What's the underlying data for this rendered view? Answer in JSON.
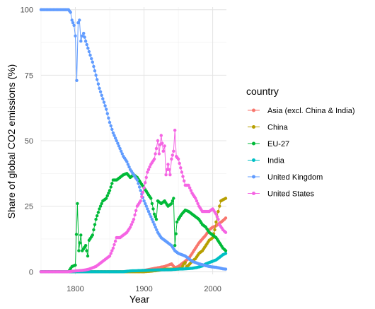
{
  "chart_data": {
    "type": "line",
    "xlabel": "Year",
    "ylabel": "Share of global CO2 emissions (%)",
    "xlim": [
      1750,
      2020
    ],
    "ylim": [
      -1,
      101
    ],
    "x_ticks": [
      1800,
      1900,
      2000
    ],
    "y_ticks": [
      0,
      25,
      50,
      75,
      100
    ],
    "grid": true,
    "markers": true,
    "legend": {
      "title": "country",
      "position": "right"
    },
    "series": [
      {
        "name": "Asia (excl. China & India)",
        "color": "#F8766D",
        "points": [
          [
            1750,
            0
          ],
          [
            1870,
            0
          ],
          [
            1880,
            0.2
          ],
          [
            1890,
            0.3
          ],
          [
            1900,
            0.5
          ],
          [
            1910,
            1
          ],
          [
            1920,
            1.5
          ],
          [
            1930,
            2
          ],
          [
            1940,
            3
          ],
          [
            1945,
            1.5
          ],
          [
            1950,
            2
          ],
          [
            1955,
            3
          ],
          [
            1960,
            4
          ],
          [
            1965,
            5
          ],
          [
            1970,
            7
          ],
          [
            1975,
            9
          ],
          [
            1980,
            11
          ],
          [
            1985,
            12.5
          ],
          [
            1990,
            14
          ],
          [
            1995,
            16
          ],
          [
            2000,
            17
          ],
          [
            2005,
            17.5
          ],
          [
            2010,
            18.5
          ],
          [
            2015,
            19.5
          ],
          [
            2019,
            20.5
          ]
        ]
      },
      {
        "name": "China",
        "color": "#B79F00",
        "points": [
          [
            1750,
            0
          ],
          [
            1900,
            0
          ],
          [
            1910,
            0.2
          ],
          [
            1920,
            0.5
          ],
          [
            1930,
            1
          ],
          [
            1940,
            1
          ],
          [
            1950,
            1
          ],
          [
            1955,
            1.5
          ],
          [
            1958,
            3
          ],
          [
            1960,
            3.5
          ],
          [
            1962,
            2
          ],
          [
            1965,
            2.5
          ],
          [
            1970,
            4
          ],
          [
            1975,
            5
          ],
          [
            1980,
            7
          ],
          [
            1985,
            8
          ],
          [
            1990,
            10
          ],
          [
            1995,
            12
          ],
          [
            2000,
            13
          ],
          [
            2003,
            16
          ],
          [
            2005,
            19
          ],
          [
            2008,
            23
          ],
          [
            2010,
            25
          ],
          [
            2012,
            27
          ],
          [
            2015,
            27.5
          ],
          [
            2019,
            28
          ]
        ]
      },
      {
        "name": "EU-27",
        "color": "#00BA38",
        "points": [
          [
            1750,
            0
          ],
          [
            1790,
            0
          ],
          [
            1795,
            2
          ],
          [
            1800,
            2.5
          ],
          [
            1803,
            26
          ],
          [
            1805,
            8
          ],
          [
            1808,
            14
          ],
          [
            1810,
            8
          ],
          [
            1815,
            10
          ],
          [
            1818,
            6
          ],
          [
            1820,
            12
          ],
          [
            1825,
            14
          ],
          [
            1830,
            20
          ],
          [
            1835,
            24
          ],
          [
            1840,
            27
          ],
          [
            1845,
            28
          ],
          [
            1850,
            31
          ],
          [
            1855,
            35
          ],
          [
            1860,
            35
          ],
          [
            1865,
            36
          ],
          [
            1870,
            37
          ],
          [
            1875,
            37.5
          ],
          [
            1880,
            36
          ],
          [
            1885,
            37
          ],
          [
            1890,
            36
          ],
          [
            1895,
            34
          ],
          [
            1900,
            32
          ],
          [
            1905,
            30
          ],
          [
            1910,
            28
          ],
          [
            1915,
            22
          ],
          [
            1918,
            20
          ],
          [
            1920,
            27
          ],
          [
            1925,
            26
          ],
          [
            1930,
            27
          ],
          [
            1935,
            25
          ],
          [
            1940,
            26
          ],
          [
            1943,
            28
          ],
          [
            1945,
            10
          ],
          [
            1948,
            19
          ],
          [
            1950,
            20
          ],
          [
            1955,
            22
          ],
          [
            1960,
            23.5
          ],
          [
            1965,
            23
          ],
          [
            1970,
            22
          ],
          [
            1975,
            21
          ],
          [
            1980,
            20
          ],
          [
            1985,
            18
          ],
          [
            1990,
            17
          ],
          [
            1995,
            15
          ],
          [
            2000,
            14
          ],
          [
            2005,
            13
          ],
          [
            2010,
            11
          ],
          [
            2015,
            9
          ],
          [
            2019,
            8
          ]
        ]
      },
      {
        "name": "India",
        "color": "#00BFC4",
        "points": [
          [
            1750,
            0
          ],
          [
            1870,
            0
          ],
          [
            1880,
            0.3
          ],
          [
            1900,
            0.5
          ],
          [
            1920,
            0.7
          ],
          [
            1940,
            0.8
          ],
          [
            1950,
            1
          ],
          [
            1960,
            1.1
          ],
          [
            1970,
            1.3
          ],
          [
            1980,
            1.8
          ],
          [
            1985,
            2.2
          ],
          [
            1990,
            3
          ],
          [
            1995,
            3.5
          ],
          [
            2000,
            4
          ],
          [
            2005,
            4.5
          ],
          [
            2010,
            5.5
          ],
          [
            2015,
            6.5
          ],
          [
            2019,
            7
          ]
        ]
      },
      {
        "name": "United Kingdom",
        "color": "#619CFF",
        "points": [
          [
            1750,
            100
          ],
          [
            1790,
            100
          ],
          [
            1793,
            99
          ],
          [
            1795,
            96
          ],
          [
            1798,
            94
          ],
          [
            1800,
            90
          ],
          [
            1802,
            73
          ],
          [
            1804,
            95
          ],
          [
            1806,
            96
          ],
          [
            1808,
            88
          ],
          [
            1810,
            90
          ],
          [
            1812,
            91
          ],
          [
            1815,
            88
          ],
          [
            1820,
            84
          ],
          [
            1825,
            80
          ],
          [
            1830,
            75
          ],
          [
            1835,
            70
          ],
          [
            1840,
            66
          ],
          [
            1845,
            62
          ],
          [
            1850,
            57
          ],
          [
            1855,
            53
          ],
          [
            1860,
            50
          ],
          [
            1865,
            47
          ],
          [
            1870,
            44
          ],
          [
            1875,
            42
          ],
          [
            1880,
            39
          ],
          [
            1885,
            37
          ],
          [
            1890,
            35
          ],
          [
            1895,
            31
          ],
          [
            1900,
            27
          ],
          [
            1905,
            24
          ],
          [
            1910,
            21
          ],
          [
            1915,
            18
          ],
          [
            1920,
            15
          ],
          [
            1925,
            13
          ],
          [
            1930,
            12
          ],
          [
            1935,
            11
          ],
          [
            1940,
            10
          ],
          [
            1945,
            8
          ],
          [
            1950,
            7
          ],
          [
            1955,
            6.5
          ],
          [
            1960,
            6
          ],
          [
            1965,
            5
          ],
          [
            1970,
            4
          ],
          [
            1975,
            3.5
          ],
          [
            1980,
            3
          ],
          [
            1985,
            2.7
          ],
          [
            1990,
            2.3
          ],
          [
            1995,
            2
          ],
          [
            2000,
            1.8
          ],
          [
            2005,
            1.7
          ],
          [
            2010,
            1.4
          ],
          [
            2015,
            1.1
          ],
          [
            2019,
            1
          ]
        ]
      },
      {
        "name": "United States",
        "color": "#F564E3",
        "points": [
          [
            1750,
            0
          ],
          [
            1790,
            0
          ],
          [
            1800,
            0.3
          ],
          [
            1810,
            0.5
          ],
          [
            1815,
            0.7
          ],
          [
            1820,
            1
          ],
          [
            1825,
            1.5
          ],
          [
            1830,
            2
          ],
          [
            1835,
            3
          ],
          [
            1840,
            4
          ],
          [
            1845,
            5
          ],
          [
            1850,
            6
          ],
          [
            1855,
            9
          ],
          [
            1860,
            13
          ],
          [
            1865,
            13
          ],
          [
            1870,
            14
          ],
          [
            1875,
            15
          ],
          [
            1880,
            17
          ],
          [
            1885,
            20
          ],
          [
            1890,
            25
          ],
          [
            1895,
            27
          ],
          [
            1900,
            32
          ],
          [
            1905,
            38
          ],
          [
            1910,
            41
          ],
          [
            1915,
            43
          ],
          [
            1918,
            47
          ],
          [
            1920,
            50
          ],
          [
            1922,
            45
          ],
          [
            1925,
            52
          ],
          [
            1928,
            46
          ],
          [
            1930,
            48
          ],
          [
            1932,
            37
          ],
          [
            1935,
            41
          ],
          [
            1938,
            37
          ],
          [
            1940,
            43
          ],
          [
            1943,
            46
          ],
          [
            1945,
            54
          ],
          [
            1947,
            44
          ],
          [
            1950,
            43
          ],
          [
            1955,
            38
          ],
          [
            1960,
            33
          ],
          [
            1965,
            33
          ],
          [
            1970,
            30
          ],
          [
            1975,
            28
          ],
          [
            1980,
            25
          ],
          [
            1985,
            23
          ],
          [
            1990,
            23
          ],
          [
            1995,
            23
          ],
          [
            2000,
            24
          ],
          [
            2005,
            22
          ],
          [
            2008,
            20
          ],
          [
            2010,
            18
          ],
          [
            2015,
            16
          ],
          [
            2019,
            15
          ]
        ]
      }
    ]
  }
}
